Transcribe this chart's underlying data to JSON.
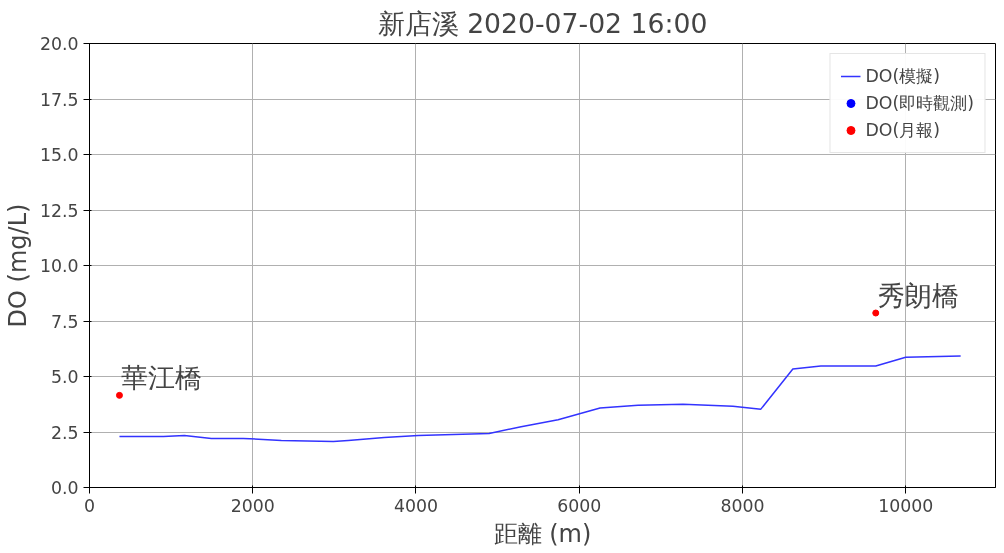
{
  "chart_data": {
    "type": "line",
    "title": "新店溪 2020-07-02 16:00",
    "xlabel": "距離 (m)",
    "ylabel": "DO (mg/L)",
    "xlim": [
      0,
      11100
    ],
    "xticks": [
      0,
      2000,
      4000,
      6000,
      8000,
      10000
    ],
    "ylim": [
      0,
      20
    ],
    "yticks": [
      {
        "value": 0,
        "label": "0.0"
      },
      {
        "value": 2.5,
        "label": "2.5"
      },
      {
        "value": 5,
        "label": "5.0"
      },
      {
        "value": 7.5,
        "label": "7.5"
      },
      {
        "value": 10,
        "label": "10.0"
      },
      {
        "value": 12.5,
        "label": "12.5"
      },
      {
        "value": 15,
        "label": "15.0"
      },
      {
        "value": 17.5,
        "label": "17.5"
      },
      {
        "value": 20,
        "label": "20.0"
      }
    ],
    "grid": true,
    "legend": "top right",
    "series": [
      {
        "name": "DO(模擬)",
        "color": "#3333ff",
        "x": [
          367,
          906,
          1163,
          1493,
          1885,
          2350,
          2987,
          3170,
          3611,
          4027,
          4896,
          5288,
          5741,
          6255,
          6720,
          7271,
          7577,
          7883,
          8225,
          8617,
          8960,
          9633,
          10000,
          10673
        ],
        "values": [
          2.3,
          2.3,
          2.34,
          2.21,
          2.21,
          2.12,
          2.07,
          2.12,
          2.25,
          2.34,
          2.43,
          2.74,
          3.05,
          3.58,
          3.71,
          3.75,
          3.71,
          3.66,
          3.53,
          5.34,
          5.47,
          5.47,
          5.87,
          5.92
        ]
      },
      {
        "name": "DO(即時觀測)",
        "type": "scatter",
        "color": "#0000ff"
      },
      {
        "name": "DO(月報)",
        "type": "scatter",
        "color": "#ff0000",
        "x": [
          367,
          9633
        ],
        "values": [
          4.15,
          7.86
        ]
      }
    ],
    "annotations": [
      {
        "text": "華江橋",
        "x": 367,
        "y": 4.15
      },
      {
        "text": "秀朗橋",
        "x": 9633,
        "y": 7.86
      }
    ]
  }
}
